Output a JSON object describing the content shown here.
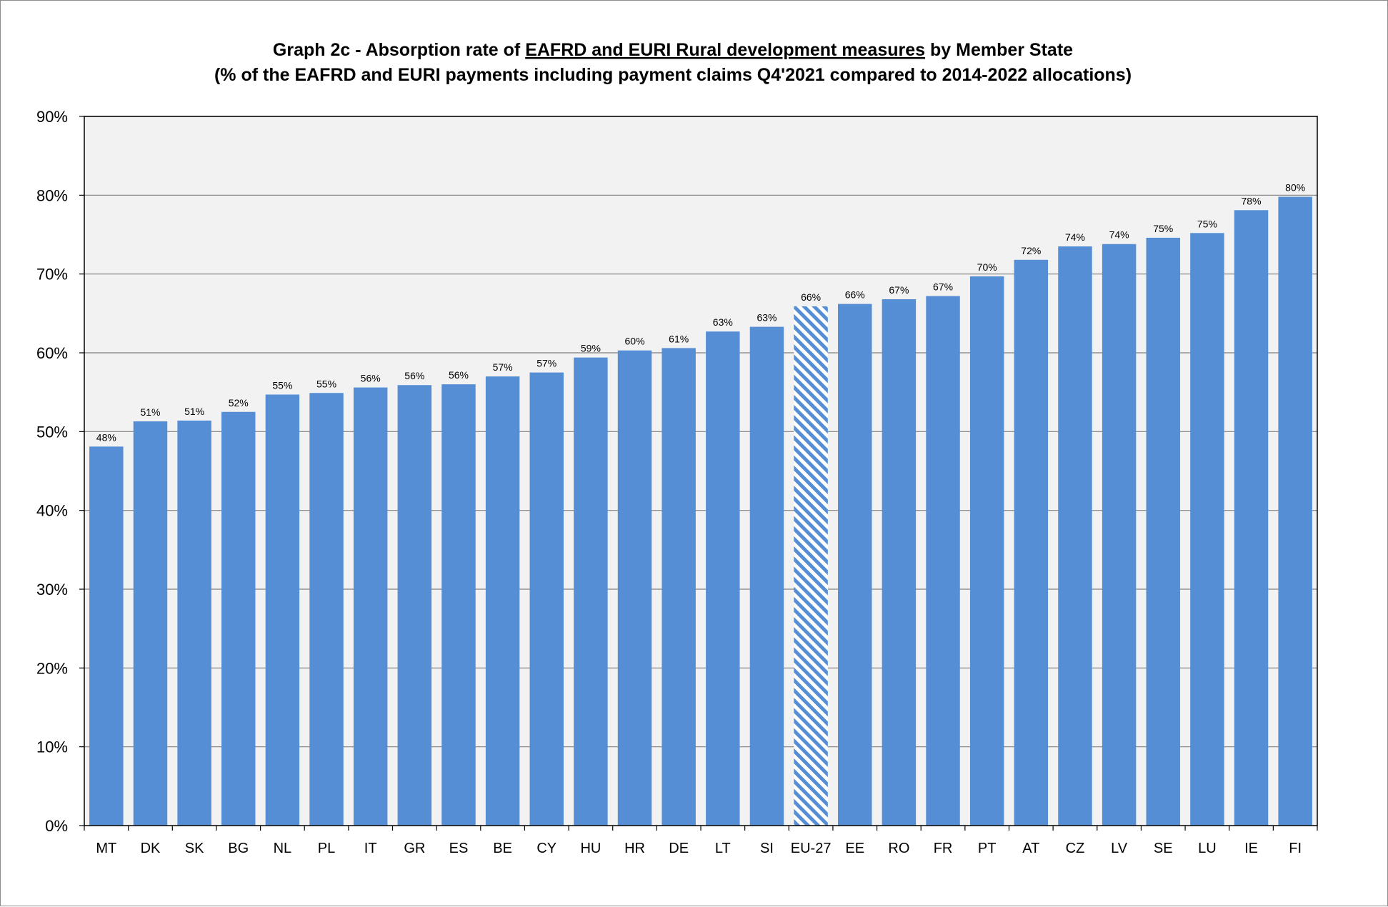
{
  "chart_data": {
    "type": "bar",
    "title": "Graph 2c - Absorption rate of EAFRD and EURI Rural development measures by Member State",
    "title_parts": [
      {
        "text": "Graph 2c - Absorption rate of ",
        "underline": false
      },
      {
        "text": "EAFRD and EURI Rural development measures",
        "underline": true
      },
      {
        "text": " by Member State",
        "underline": false
      }
    ],
    "subtitle": "(% of the EAFRD and EURI payments including payment claims Q4'2021 compared to 2014-2022 allocations)",
    "xlabel": "",
    "ylabel": "",
    "ylim": [
      0,
      90
    ],
    "yticks": [
      0,
      10,
      20,
      30,
      40,
      50,
      60,
      70,
      80,
      90
    ],
    "ytick_labels": [
      "0%",
      "10%",
      "20%",
      "30%",
      "40%",
      "50%",
      "60%",
      "70%",
      "80%",
      "90%"
    ],
    "grid": true,
    "legend": "none",
    "categories": [
      "MT",
      "DK",
      "SK",
      "BG",
      "NL",
      "PL",
      "IT",
      "GR",
      "ES",
      "BE",
      "CY",
      "HU",
      "HR",
      "DE",
      "LT",
      "SI",
      "EU-27",
      "EE",
      "RO",
      "FR",
      "PT",
      "AT",
      "CZ",
      "LV",
      "SE",
      "LU",
      "IE",
      "FI"
    ],
    "values": [
      48.1,
      51.3,
      51.4,
      52.5,
      54.7,
      54.9,
      55.6,
      55.9,
      56.0,
      57.0,
      57.5,
      59.4,
      60.3,
      60.6,
      62.7,
      63.3,
      65.9,
      66.2,
      66.8,
      67.2,
      69.7,
      71.8,
      73.5,
      73.8,
      74.6,
      75.2,
      78.1,
      79.8
    ],
    "data_labels": [
      "48%",
      "51%",
      "51%",
      "52%",
      "55%",
      "55%",
      "56%",
      "56%",
      "56%",
      "57%",
      "57%",
      "59%",
      "60%",
      "61%",
      "63%",
      "63%",
      "66%",
      "66%",
      "67%",
      "67%",
      "70%",
      "72%",
      "74%",
      "74%",
      "75%",
      "75%",
      "78%",
      "80%"
    ],
    "highlight_category": "EU-27",
    "colors": {
      "bar": "#558ED5",
      "highlight": "#558ED5",
      "plot_background": "#F2F2F2",
      "grid": "#808080",
      "axis": "#000000"
    }
  }
}
